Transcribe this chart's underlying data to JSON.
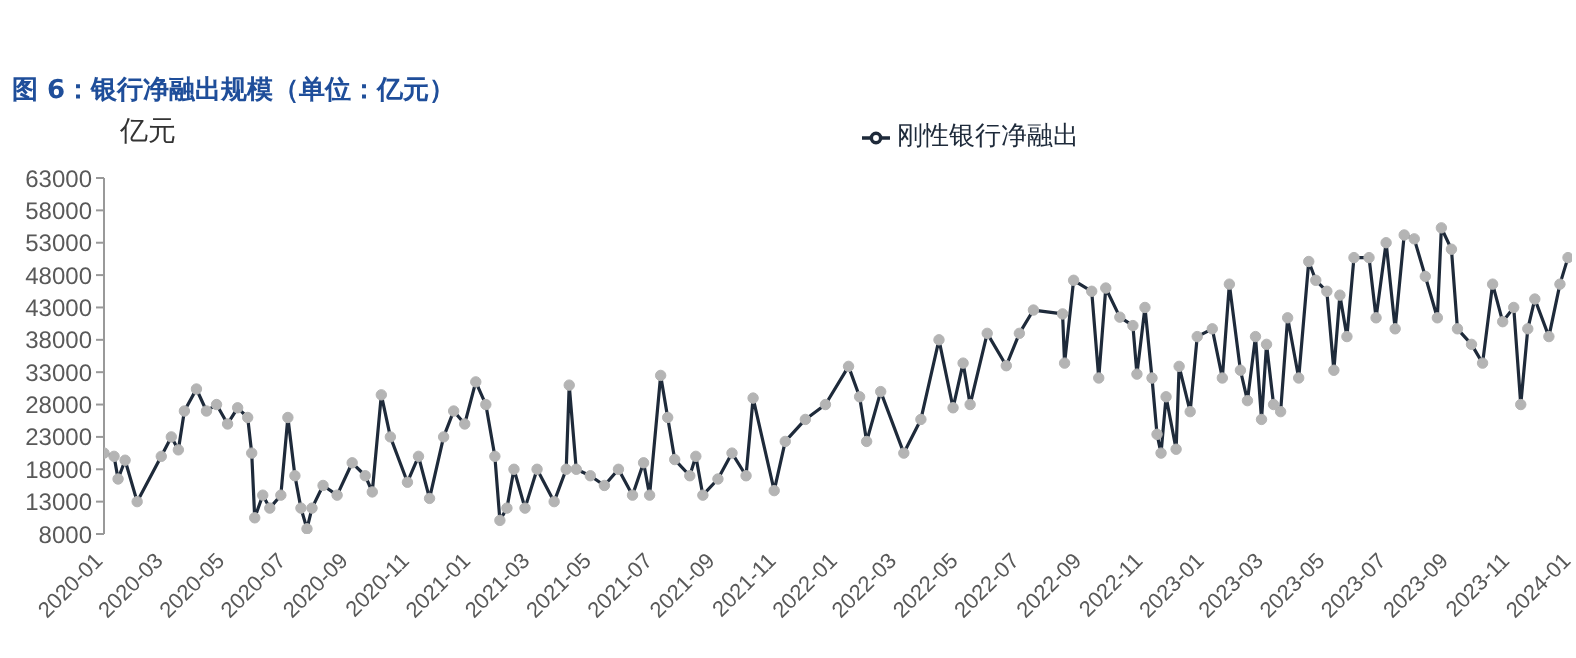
{
  "chart_data": {
    "type": "line",
    "title": "图 6：银行净融出规模（单位：亿元）",
    "ylabel": "亿元",
    "x": [
      "2020-01-01",
      "2020-01-11",
      "2020-01-15",
      "2020-01-22",
      "2020-02-03",
      "2020-02-27",
      "2020-03-08",
      "2020-03-15",
      "2020-03-21",
      "2020-04-02",
      "2020-04-12",
      "2020-04-22",
      "2020-05-03",
      "2020-05-13",
      "2020-05-23",
      "2020-05-27",
      "2020-05-30",
      "2020-06-07",
      "2020-06-14",
      "2020-06-25",
      "2020-07-02",
      "2020-07-09",
      "2020-07-15",
      "2020-07-21",
      "2020-07-26",
      "2020-08-06",
      "2020-08-20",
      "2020-09-04",
      "2020-09-17",
      "2020-09-24",
      "2020-10-03",
      "2020-10-12",
      "2020-10-29",
      "2020-11-09",
      "2020-11-20",
      "2020-12-04",
      "2020-12-14",
      "2020-12-25",
      "2021-01-05",
      "2021-01-15",
      "2021-01-24",
      "2021-01-29",
      "2021-02-05",
      "2021-02-12",
      "2021-02-23",
      "2021-03-07",
      "2021-03-24",
      "2021-04-05",
      "2021-04-08",
      "2021-04-15",
      "2021-04-29",
      "2021-05-13",
      "2021-05-27",
      "2021-06-10",
      "2021-06-21",
      "2021-06-27",
      "2021-07-08",
      "2021-07-15",
      "2021-07-22",
      "2021-08-06",
      "2021-08-12",
      "2021-08-19",
      "2021-09-03",
      "2021-09-17",
      "2021-10-01",
      "2021-10-08",
      "2021-10-29",
      "2021-11-09",
      "2021-11-29",
      "2021-12-19",
      "2022-01-11",
      "2022-01-22",
      "2022-01-29",
      "2022-02-12",
      "2022-03-07",
      "2022-03-24",
      "2022-04-11",
      "2022-04-25",
      "2022-05-05",
      "2022-05-12",
      "2022-05-29",
      "2022-06-17",
      "2022-06-30",
      "2022-07-14",
      "2022-08-12",
      "2022-08-14",
      "2022-08-23",
      "2022-09-10",
      "2022-09-17",
      "2022-09-24",
      "2022-10-08",
      "2022-10-21",
      "2022-10-25",
      "2022-11-02",
      "2022-11-09",
      "2022-11-14",
      "2022-11-18",
      "2022-11-23",
      "2022-12-03",
      "2022-12-06",
      "2022-12-17",
      "2022-12-24",
      "2023-01-08",
      "2023-01-18",
      "2023-01-25",
      "2023-02-05",
      "2023-02-12",
      "2023-02-20",
      "2023-02-26",
      "2023-03-03",
      "2023-03-10",
      "2023-03-17",
      "2023-03-24",
      "2023-04-04",
      "2023-04-14",
      "2023-04-21",
      "2023-05-02",
      "2023-05-09",
      "2023-05-15",
      "2023-05-22",
      "2023-05-29",
      "2023-06-13",
      "2023-06-20",
      "2023-06-30",
      "2023-07-09",
      "2023-07-18",
      "2023-07-28",
      "2023-08-08",
      "2023-08-20",
      "2023-08-24",
      "2023-09-03",
      "2023-09-09",
      "2023-09-23",
      "2023-10-04",
      "2023-10-14",
      "2023-10-24",
      "2023-11-04",
      "2023-11-11",
      "2023-11-18",
      "2023-11-25",
      "2023-12-09",
      "2023-12-20",
      "2023-12-28"
    ],
    "series": [
      {
        "name": "刚性银行净融出",
        "color": "#1e2a3a",
        "values": [
          20500,
          20000,
          16500,
          19400,
          13000,
          20000,
          23000,
          21000,
          27000,
          30400,
          27000,
          28000,
          25000,
          27500,
          26000,
          20500,
          10500,
          14000,
          12000,
          14000,
          26000,
          17000,
          12000,
          8800,
          12000,
          15500,
          14000,
          19000,
          17000,
          14500,
          29500,
          23000,
          16000,
          20000,
          13500,
          23000,
          27000,
          25000,
          31500,
          28000,
          20000,
          10100,
          12000,
          18000,
          12000,
          18000,
          13000,
          18000,
          31000,
          18000,
          17000,
          15500,
          18000,
          14000,
          19000,
          14000,
          32500,
          26000,
          19500,
          17000,
          20000,
          14000,
          16500,
          20500,
          17000,
          29000,
          14700,
          22300,
          25700,
          28000,
          33900,
          29200,
          22300,
          30000,
          20500,
          25700,
          38000,
          27500,
          34400,
          28000,
          39000,
          34000,
          39000,
          42600,
          42000,
          34400,
          47200,
          45500,
          32100,
          46000,
          41500,
          40200,
          32700,
          43000,
          32100,
          23400,
          20500,
          29200,
          21100,
          33900,
          26900,
          38500,
          39700,
          32100,
          46600,
          33300,
          28600,
          38500,
          25700,
          37300,
          28000,
          26900,
          41400,
          32100,
          50100,
          47200,
          45500,
          33300,
          44900,
          38500,
          50700,
          50700,
          41400,
          53000,
          39700,
          54200,
          53600,
          47800,
          41400,
          55300,
          52000,
          39700,
          37300,
          34400,
          46600,
          40800,
          43000,
          28000,
          39700,
          44300,
          38500,
          46600,
          50700
        ]
      }
    ],
    "xlim": [
      "2020-01-01",
      "2024-01-01"
    ],
    "xticks": [
      "2020-01",
      "2020-03",
      "2020-05",
      "2020-07",
      "2020-09",
      "2020-11",
      "2021-01",
      "2021-03",
      "2021-05",
      "2021-07",
      "2021-09",
      "2021-11",
      "2022-01",
      "2022-03",
      "2022-05",
      "2022-07",
      "2022-09",
      "2022-11",
      "2023-01",
      "2023-03",
      "2023-05",
      "2023-07",
      "2023-09",
      "2023-11",
      "2024-01"
    ],
    "ylim": [
      8000,
      63000
    ],
    "yticks": [
      8000,
      13000,
      18000,
      23000,
      28000,
      33000,
      38000,
      43000,
      48000,
      53000,
      58000,
      63000
    ],
    "grid": false,
    "legend": "top",
    "marker": "circle",
    "line_style": "solid"
  }
}
